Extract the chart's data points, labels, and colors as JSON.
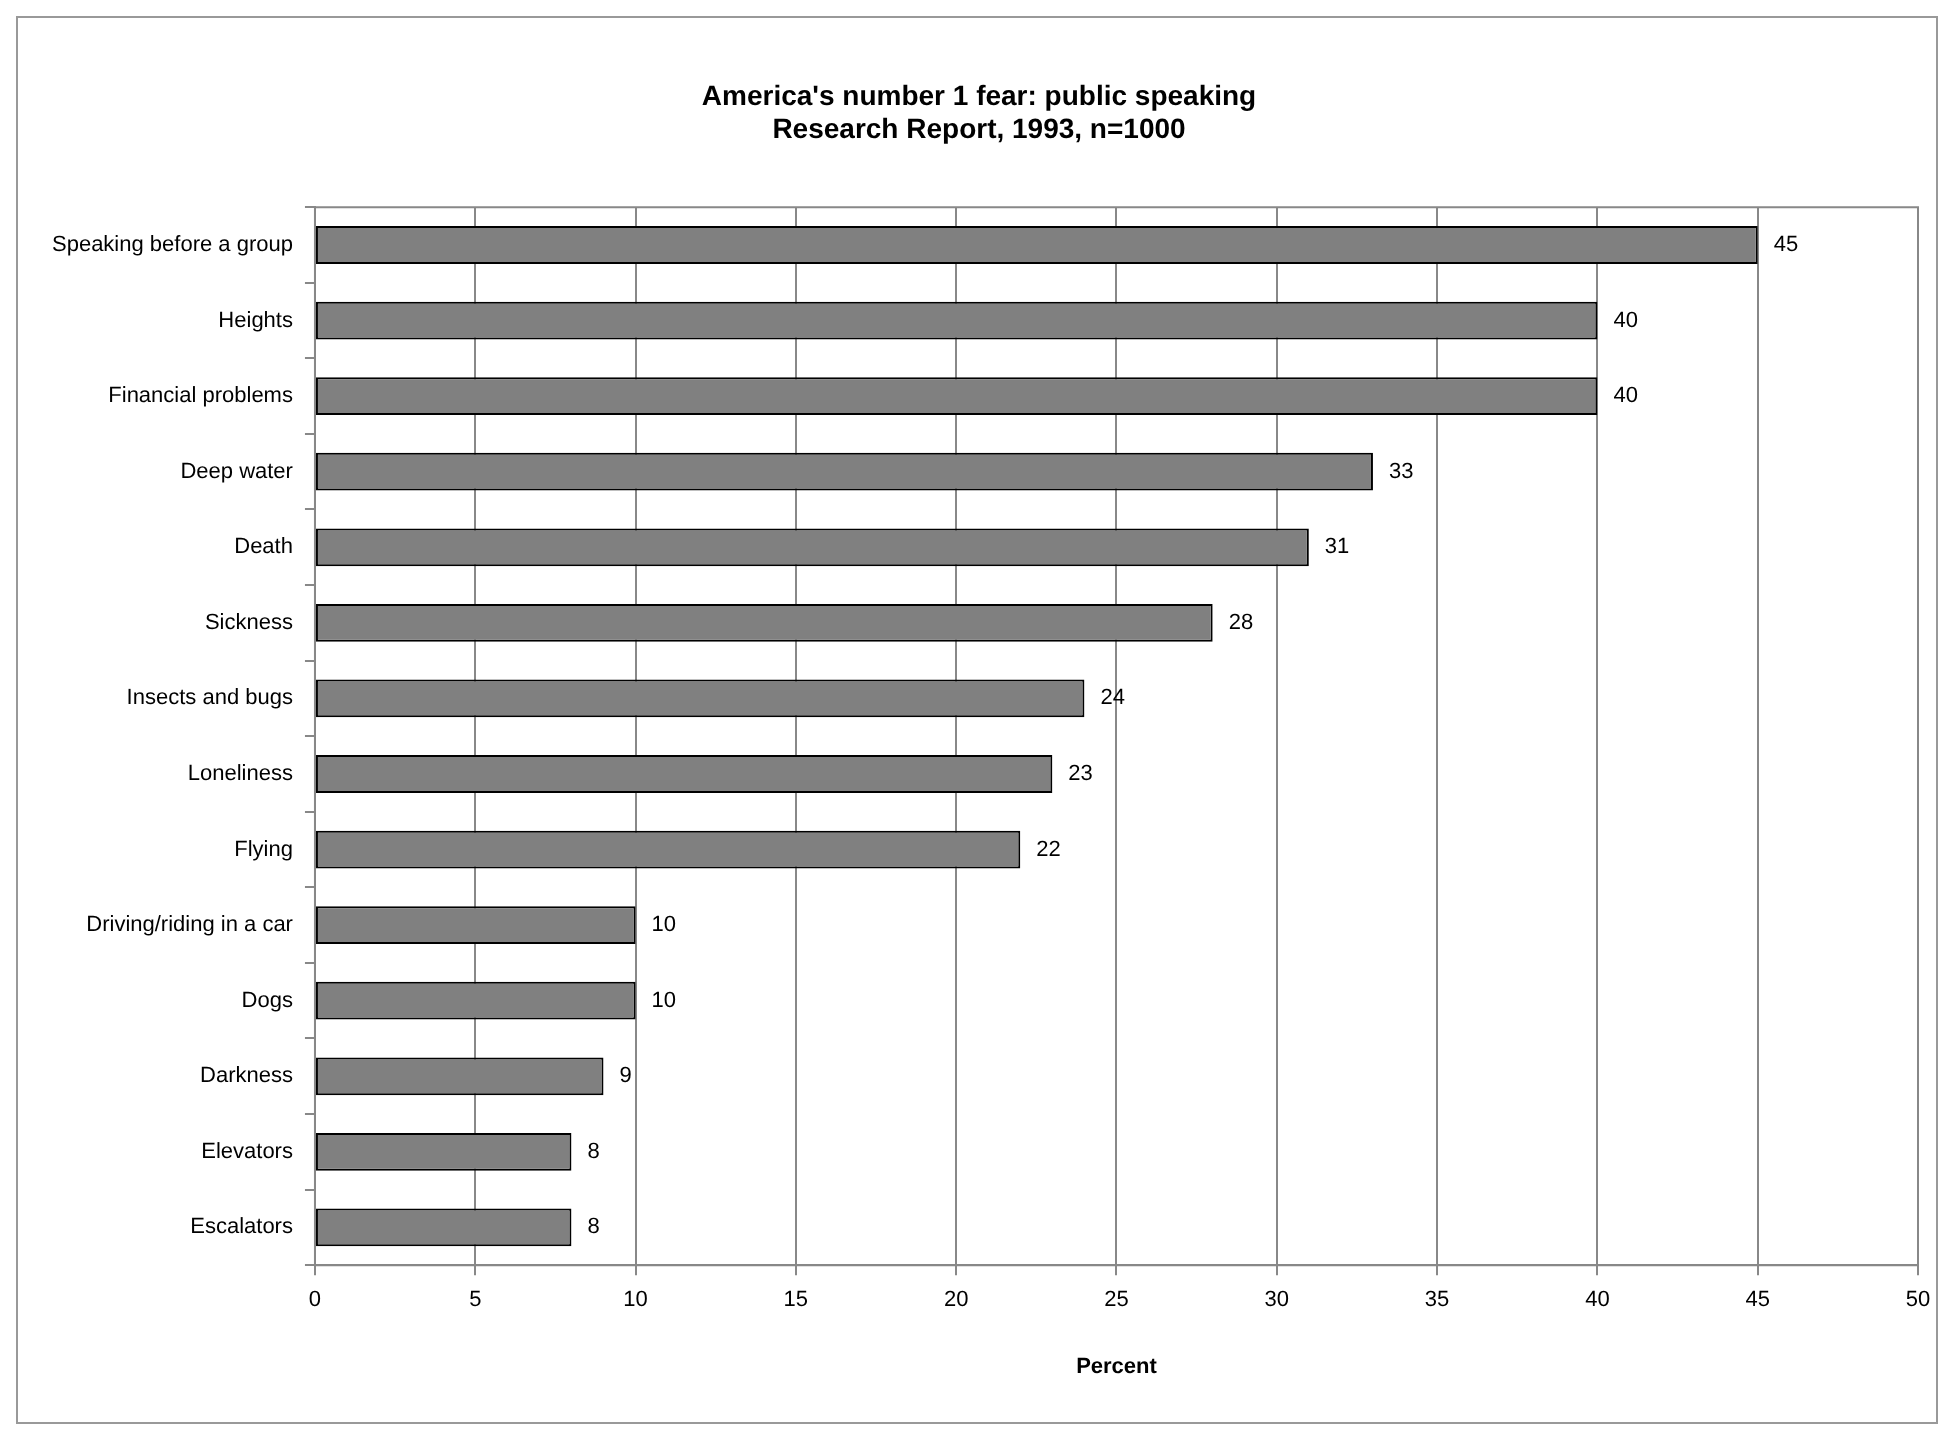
{
  "chart_data": {
    "type": "bar",
    "orientation": "horizontal",
    "title": "America's number 1 fear: public speaking",
    "subtitle": "Research Report, 1993, n=1000",
    "xlabel": "Percent",
    "categories": [
      "Speaking before a group",
      "Heights",
      "Financial problems",
      "Deep water",
      "Death",
      "Sickness",
      "Insects and bugs",
      "Loneliness",
      "Flying",
      "Driving/riding in a car",
      "Dogs",
      "Darkness",
      "Elevators",
      "Escalators"
    ],
    "values": [
      45,
      40,
      40,
      33,
      31,
      28,
      24,
      23,
      22,
      10,
      10,
      9,
      8,
      8
    ],
    "color": "#808080",
    "xlim": [
      0,
      50
    ],
    "xticks": [
      0,
      5,
      10,
      15,
      20,
      25,
      30,
      35,
      40,
      45,
      50
    ],
    "grid": "x",
    "data_labels": true,
    "legend": false
  }
}
